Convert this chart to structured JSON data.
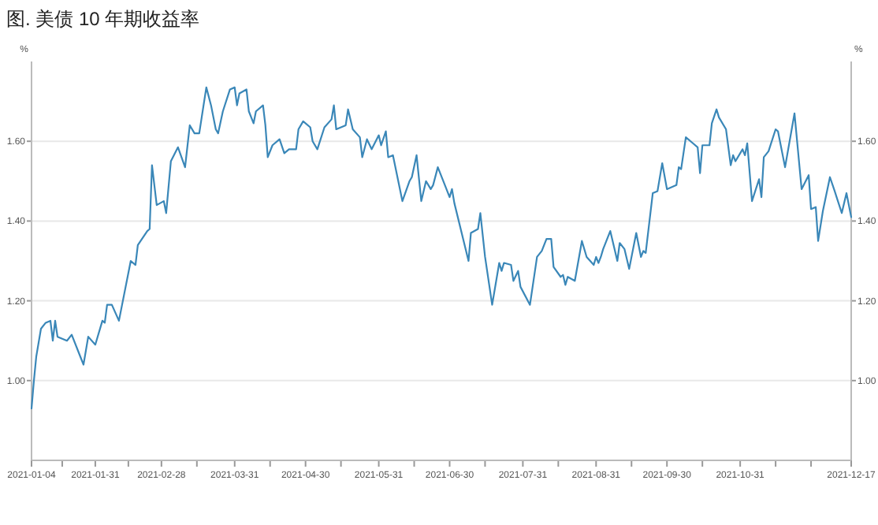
{
  "chart_data": {
    "type": "line",
    "title": "图. 美债 10 年期收益率",
    "ylabel": "%",
    "y2label": "%",
    "grid": "y",
    "x": [
      "2021-01-04",
      "2021-01-05",
      "2021-01-06",
      "2021-01-08",
      "2021-01-10",
      "2021-01-12",
      "2021-01-13",
      "2021-01-14",
      "2021-01-15",
      "2021-01-19",
      "2021-01-21",
      "2021-01-25",
      "2021-01-26",
      "2021-01-28",
      "2021-01-31",
      "2021-02-03",
      "2021-02-04",
      "2021-02-05",
      "2021-02-07",
      "2021-02-10",
      "2021-02-15",
      "2021-02-17",
      "2021-02-18",
      "2021-02-22",
      "2021-02-23",
      "2021-02-24",
      "2021-02-26",
      "2021-03-01",
      "2021-03-02",
      "2021-03-04",
      "2021-03-07",
      "2021-03-10",
      "2021-03-12",
      "2021-03-14",
      "2021-03-16",
      "2021-03-19",
      "2021-03-21",
      "2021-03-23",
      "2021-03-24",
      "2021-03-26",
      "2021-03-29",
      "2021-03-31",
      "2021-04-01",
      "2021-04-02",
      "2021-04-05",
      "2021-04-06",
      "2021-04-08",
      "2021-04-09",
      "2021-04-12",
      "2021-04-13",
      "2021-04-14",
      "2021-04-16",
      "2021-04-19",
      "2021-04-21",
      "2021-04-23",
      "2021-04-26",
      "2021-04-27",
      "2021-04-29",
      "2021-05-02",
      "2021-05-03",
      "2021-05-05",
      "2021-05-08",
      "2021-05-11",
      "2021-05-12",
      "2021-05-13",
      "2021-05-17",
      "2021-05-18",
      "2021-05-20",
      "2021-05-23",
      "2021-05-24",
      "2021-05-26",
      "2021-05-28",
      "2021-05-31",
      "2021-06-01",
      "2021-06-03",
      "2021-06-04",
      "2021-06-06",
      "2021-06-10",
      "2021-06-13",
      "2021-06-14",
      "2021-06-16",
      "2021-06-18",
      "2021-06-20",
      "2021-06-22",
      "2021-06-23",
      "2021-06-25",
      "2021-06-28",
      "2021-06-30",
      "2021-07-01",
      "2021-07-02",
      "2021-07-08",
      "2021-07-09",
      "2021-07-12",
      "2021-07-13",
      "2021-07-15",
      "2021-07-18",
      "2021-07-21",
      "2021-07-22",
      "2021-07-23",
      "2021-07-26",
      "2021-07-27",
      "2021-07-29",
      "2021-07-30",
      "2021-08-03",
      "2021-08-06",
      "2021-08-08",
      "2021-08-10",
      "2021-08-12",
      "2021-08-13",
      "2021-08-16",
      "2021-08-17",
      "2021-08-18",
      "2021-08-19",
      "2021-08-22",
      "2021-08-25",
      "2021-08-27",
      "2021-08-30",
      "2021-08-31",
      "2021-09-01",
      "2021-09-02",
      "2021-09-03",
      "2021-09-06",
      "2021-09-09",
      "2021-09-10",
      "2021-09-12",
      "2021-09-14",
      "2021-09-17",
      "2021-09-19",
      "2021-09-20",
      "2021-09-21",
      "2021-09-24",
      "2021-09-26",
      "2021-09-28",
      "2021-09-30",
      "2021-10-04",
      "2021-10-05",
      "2021-10-06",
      "2021-10-08",
      "2021-10-11",
      "2021-10-13",
      "2021-10-14",
      "2021-10-15",
      "2021-10-18",
      "2021-10-19",
      "2021-10-21",
      "2021-10-22",
      "2021-10-25",
      "2021-10-27",
      "2021-10-28",
      "2021-10-29",
      "2021-11-01",
      "2021-11-02",
      "2021-11-03",
      "2021-11-05",
      "2021-11-08",
      "2021-11-09",
      "2021-11-10",
      "2021-11-12",
      "2021-11-15",
      "2021-11-16",
      "2021-11-19",
      "2021-11-23",
      "2021-11-26",
      "2021-11-29",
      "2021-11-30",
      "2021-12-02",
      "2021-12-03",
      "2021-12-05",
      "2021-12-08",
      "2021-12-10",
      "2021-12-13",
      "2021-12-15",
      "2021-12-17"
    ],
    "series": [
      {
        "color": "#3a87b8",
        "values": [
          0.93,
          1.0,
          1.06,
          1.13,
          1.145,
          1.15,
          1.1,
          1.15,
          1.11,
          1.1,
          1.115,
          1.055,
          1.04,
          1.11,
          1.09,
          1.15,
          1.145,
          1.19,
          1.19,
          1.15,
          1.3,
          1.29,
          1.34,
          1.375,
          1.38,
          1.54,
          1.44,
          1.45,
          1.42,
          1.55,
          1.585,
          1.535,
          1.64,
          1.62,
          1.62,
          1.735,
          1.69,
          1.63,
          1.62,
          1.675,
          1.73,
          1.735,
          1.69,
          1.72,
          1.73,
          1.675,
          1.645,
          1.675,
          1.69,
          1.64,
          1.56,
          1.59,
          1.605,
          1.57,
          1.58,
          1.58,
          1.63,
          1.65,
          1.635,
          1.6,
          1.58,
          1.635,
          1.655,
          1.69,
          1.63,
          1.64,
          1.68,
          1.63,
          1.61,
          1.56,
          1.605,
          1.58,
          1.615,
          1.59,
          1.625,
          1.56,
          1.565,
          1.45,
          1.5,
          1.51,
          1.565,
          1.45,
          1.5,
          1.48,
          1.49,
          1.535,
          1.49,
          1.46,
          1.48,
          1.445,
          1.3,
          1.37,
          1.38,
          1.42,
          1.31,
          1.19,
          1.295,
          1.275,
          1.295,
          1.29,
          1.25,
          1.275,
          1.235,
          1.19,
          1.31,
          1.325,
          1.355,
          1.355,
          1.285,
          1.26,
          1.265,
          1.24,
          1.26,
          1.25,
          1.35,
          1.31,
          1.29,
          1.31,
          1.295,
          1.31,
          1.33,
          1.375,
          1.3,
          1.345,
          1.33,
          1.28,
          1.37,
          1.31,
          1.325,
          1.32,
          1.47,
          1.475,
          1.545,
          1.48,
          1.49,
          1.535,
          1.53,
          1.61,
          1.595,
          1.585,
          1.52,
          1.59,
          1.59,
          1.645,
          1.68,
          1.66,
          1.63,
          1.54,
          1.565,
          1.55,
          1.58,
          1.565,
          1.595,
          1.45,
          1.505,
          1.46,
          1.56,
          1.575,
          1.63,
          1.625,
          1.535,
          1.67,
          1.48,
          1.515,
          1.43,
          1.435,
          1.35,
          1.425,
          1.51,
          1.475,
          1.42,
          1.47,
          1.41
        ]
      }
    ],
    "xlim": [
      "2021-01-04",
      "2021-12-17"
    ],
    "xticks": [
      {
        "value": "2021-01-04",
        "label": "2021-01-04"
      },
      {
        "value": "2021-01-17",
        "label": null
      },
      {
        "value": "2021-01-31",
        "label": "2021-01-31"
      },
      {
        "value": "2021-02-14",
        "label": null
      },
      {
        "value": "2021-02-28",
        "label": "2021-02-28"
      },
      {
        "value": "2021-03-15",
        "label": null
      },
      {
        "value": "2021-03-31",
        "label": "2021-03-31"
      },
      {
        "value": "2021-04-15",
        "label": null
      },
      {
        "value": "2021-04-30",
        "label": "2021-04-30"
      },
      {
        "value": "2021-05-15",
        "label": null
      },
      {
        "value": "2021-05-31",
        "label": "2021-05-31"
      },
      {
        "value": "2021-06-15",
        "label": null
      },
      {
        "value": "2021-06-30",
        "label": "2021-06-30"
      },
      {
        "value": "2021-07-15",
        "label": null
      },
      {
        "value": "2021-07-31",
        "label": "2021-07-31"
      },
      {
        "value": "2021-08-15",
        "label": null
      },
      {
        "value": "2021-08-31",
        "label": "2021-08-31"
      },
      {
        "value": "2021-09-15",
        "label": null
      },
      {
        "value": "2021-09-30",
        "label": "2021-09-30"
      },
      {
        "value": "2021-10-15",
        "label": null
      },
      {
        "value": "2021-10-31",
        "label": "2021-10-31"
      },
      {
        "value": "2021-11-15",
        "label": null
      },
      {
        "value": "2021-11-30",
        "label": null
      },
      {
        "value": "2021-12-17",
        "label": "2021-12-17"
      }
    ],
    "ylim": [
      0.8,
      1.8
    ],
    "yticks": [
      {
        "value": 1.0,
        "label": "1.00"
      },
      {
        "value": 1.2,
        "label": "1.20"
      },
      {
        "value": 1.4,
        "label": "1.40"
      },
      {
        "value": 1.6,
        "label": "1.60"
      }
    ],
    "y2lim": [
      0.8,
      1.8
    ],
    "y2ticks": [
      {
        "value": 1.0,
        "label": "1.00"
      },
      {
        "value": 1.2,
        "label": "1.20"
      },
      {
        "value": 1.4,
        "label": "1.40"
      },
      {
        "value": 1.6,
        "label": "1.60"
      }
    ]
  }
}
